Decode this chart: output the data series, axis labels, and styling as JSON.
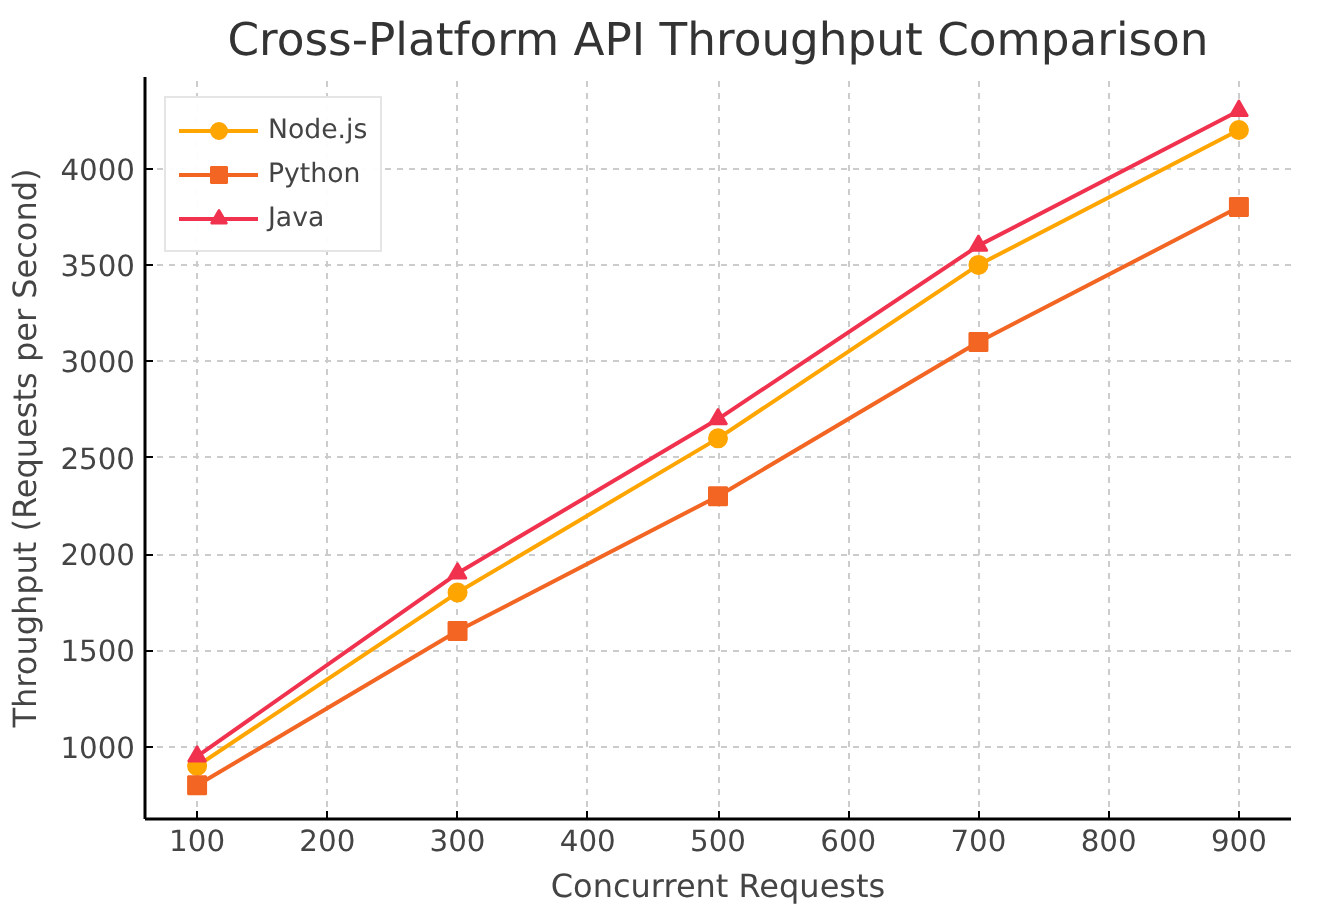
{
  "chart_data": {
    "type": "line",
    "title": "Cross-Platform API Throughput Comparison",
    "xlabel": "Concurrent Requests",
    "ylabel": "Throughput (Requests per Second)",
    "x": [
      100,
      300,
      500,
      700,
      900
    ],
    "series": [
      {
        "name": "Node.js",
        "color": "#ffa500",
        "marker": "circle",
        "values": [
          900,
          1800,
          2600,
          3500,
          4200
        ]
      },
      {
        "name": "Python",
        "color": "#f26522",
        "marker": "square",
        "values": [
          800,
          1600,
          2300,
          3100,
          3800
        ]
      },
      {
        "name": "Java",
        "color": "#f0324f",
        "marker": "triangle",
        "values": [
          950,
          1900,
          2700,
          3600,
          4300
        ]
      }
    ],
    "xlim": [
      60,
      940
    ],
    "ylim": [
      625,
      4475
    ],
    "xticks": [
      100,
      200,
      300,
      400,
      500,
      600,
      700,
      800,
      900
    ],
    "yticks": [
      1000,
      1500,
      2000,
      2500,
      3000,
      3500,
      4000
    ],
    "grid": true,
    "legend": "top left",
    "line_style": "solid"
  }
}
